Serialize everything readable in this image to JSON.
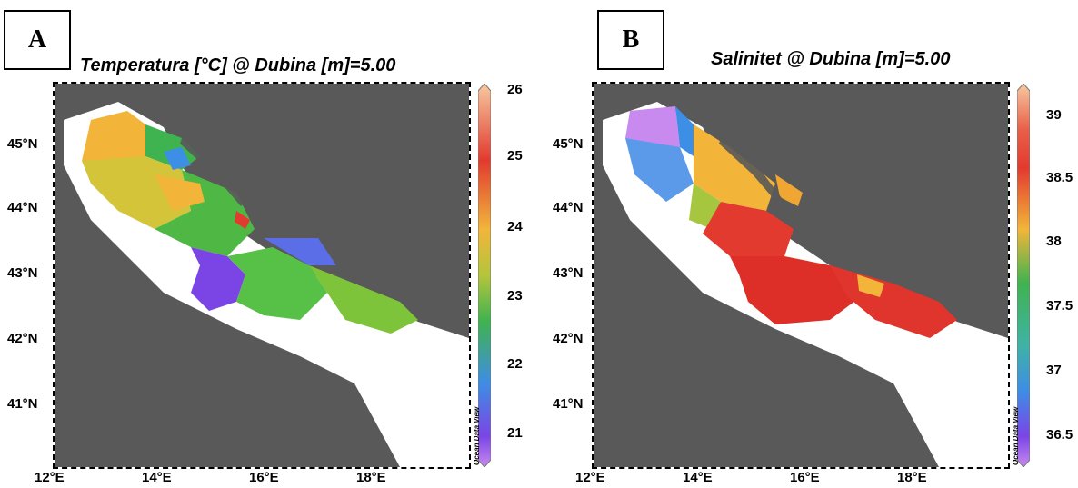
{
  "panels": [
    {
      "letter": "A",
      "title": "Temperatura [°C] @ Dubina [m]=5.00",
      "lat_labels": [
        "45°N",
        "44°N",
        "43°N",
        "42°N",
        "41°N"
      ],
      "lon_labels": [
        "12°E",
        "14°E",
        "16°E",
        "18°E"
      ],
      "colorbar_ticks": [
        "26",
        "25",
        "24",
        "23",
        "22",
        "21"
      ],
      "colorbar_credit": "Ocean Data View",
      "colors": [
        "#f7c9a0",
        "#e23a2e",
        "#f2b53a",
        "#b4c53a",
        "#3fb34f",
        "#3d8ee5",
        "#7b45e6",
        "#c98af0"
      ]
    },
    {
      "letter": "B",
      "title": "Salinitet @ Dubina [m]=5.00",
      "lat_labels": [
        "45°N",
        "44°N",
        "43°N",
        "42°N",
        "41°N"
      ],
      "lon_labels": [
        "12°E",
        "14°E",
        "16°E",
        "18°E"
      ],
      "colorbar_ticks": [
        "39",
        "38.5",
        "38",
        "37.5",
        "37",
        "36.5"
      ],
      "colorbar_credit": "Ocean Data View",
      "colors": [
        "#f7c9a0",
        "#e23a2e",
        "#f2b53a",
        "#b4c53a",
        "#3fb34f",
        "#3d8ee5",
        "#7b45e6",
        "#c98af0"
      ]
    }
  ]
}
